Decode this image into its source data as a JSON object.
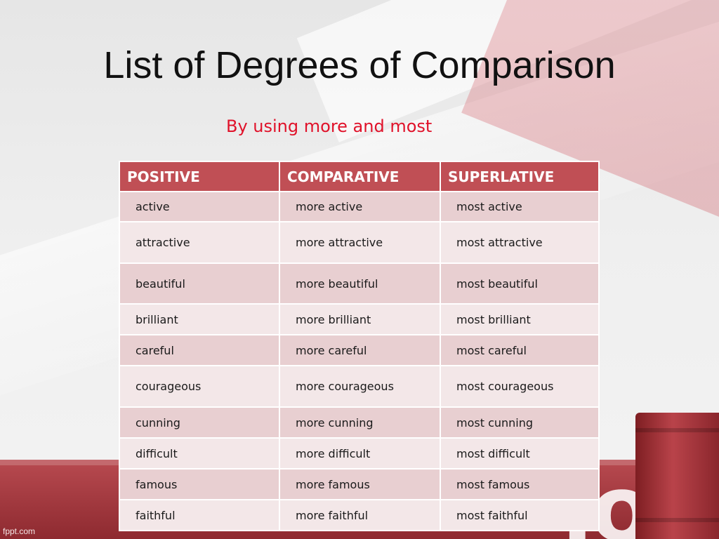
{
  "slide": {
    "title": "List of Degrees of Comparison",
    "subtitle": "By using more and most",
    "footer": "fppt.com",
    "background_word": "ion"
  },
  "table": {
    "headers": [
      "POSITIVE",
      "COMPARATIVE",
      "SUPERLATIVE"
    ],
    "rows": [
      [
        "active",
        "more active",
        "most active"
      ],
      [
        "attractive",
        "more attractive",
        "most attractive"
      ],
      [
        "beautiful",
        "more beautiful",
        "most beautiful"
      ],
      [
        "brilliant",
        "more brilliant",
        "most brilliant"
      ],
      [
        "careful",
        "more careful",
        "most careful"
      ],
      [
        "courageous",
        "more courageous",
        "most courageous"
      ],
      [
        "cunning",
        "more cunning",
        "most cunning"
      ],
      [
        "difficult",
        "more difficult",
        "most difficult"
      ],
      [
        "famous",
        "more famous",
        "most famous"
      ],
      [
        "faithful",
        "more faithful",
        "most faithful"
      ]
    ]
  },
  "colors": {
    "header_bg": "#c04f55",
    "row_odd": "#e8cfd1",
    "row_even": "#f3e7e8",
    "subtitle": "#e0122a"
  }
}
